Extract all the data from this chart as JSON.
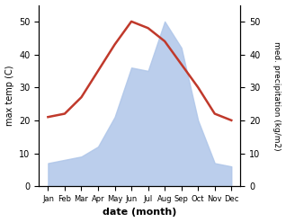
{
  "months": [
    "Jan",
    "Feb",
    "Mar",
    "Apr",
    "May",
    "Jun",
    "Jul",
    "Aug",
    "Sep",
    "Oct",
    "Nov",
    "Dec"
  ],
  "temperature": [
    21,
    22,
    27,
    35,
    43,
    50,
    48,
    44,
    37,
    30,
    22,
    20
  ],
  "precipitation": [
    7,
    8,
    9,
    12,
    21,
    36,
    35,
    50,
    42,
    20,
    7,
    6
  ],
  "temp_color": "#c0392b",
  "precip_color": "#afc6e9",
  "temp_ylim": [
    0,
    55
  ],
  "precip_ylim": [
    0,
    55
  ],
  "temp_yticks": [
    0,
    10,
    20,
    30,
    40,
    50
  ],
  "precip_yticks": [
    0,
    10,
    20,
    30,
    40,
    50
  ],
  "xlabel": "date (month)",
  "ylabel_left": "max temp (C)",
  "ylabel_right": "med. precipitation (kg/m2)",
  "bg_color": "#ffffff"
}
